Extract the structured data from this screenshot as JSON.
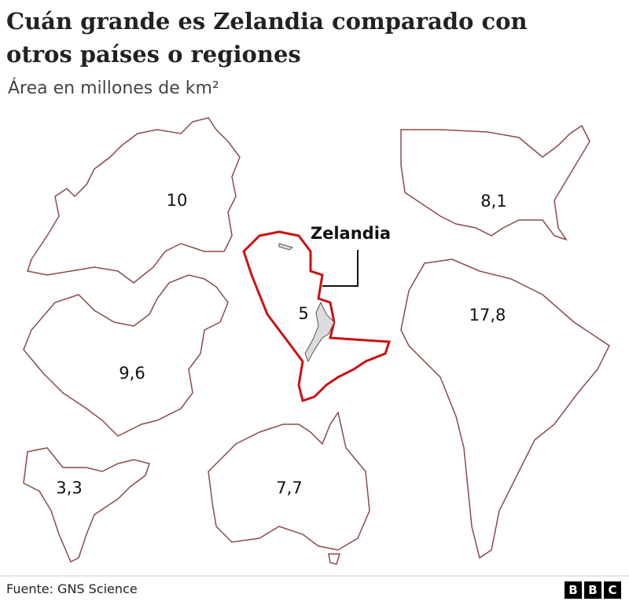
{
  "header": {
    "title_lines": [
      "Cuán grande es Zelandia comparado con",
      "otros países o regiones"
    ],
    "subtitle": "Área en millones de km²"
  },
  "regions": [
    {
      "label": "10"
    },
    {
      "label": "8,1"
    },
    {
      "label": "5"
    },
    {
      "label": "17,8"
    },
    {
      "label": "9,6"
    },
    {
      "label": "3,3"
    },
    {
      "label": "7,7"
    }
  ],
  "annotation": "Zelandia",
  "footer": {
    "source": "Fuente: GNS Science",
    "logo": [
      "B",
      "B",
      "C"
    ]
  }
}
